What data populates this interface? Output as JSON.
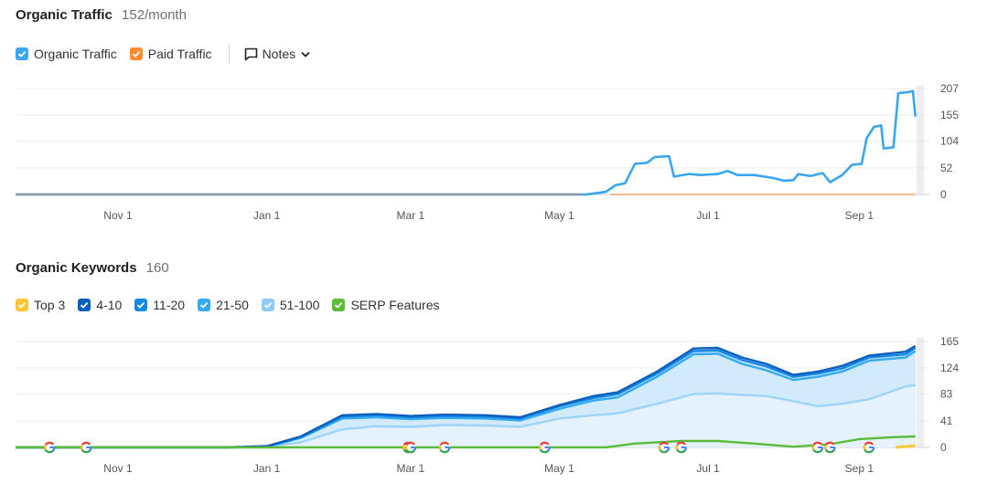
{
  "traffic": {
    "title": "Organic Traffic",
    "value": "152/month",
    "legend": [
      {
        "label": "Organic Traffic",
        "color": "#3aa6f0"
      },
      {
        "label": "Paid Traffic",
        "color": "#ff8c33"
      }
    ],
    "notes_label": "Notes"
  },
  "keywords": {
    "title": "Organic Keywords",
    "value": "160",
    "legend": [
      {
        "label": "Top 3",
        "color": "#ffc533"
      },
      {
        "label": "4-10",
        "color": "#0d5fbb"
      },
      {
        "label": "11-20",
        "color": "#1787e6"
      },
      {
        "label": "21-50",
        "color": "#34aaf2"
      },
      {
        "label": "51-100",
        "color": "#8fcbf6"
      },
      {
        "label": "SERP Features",
        "color": "#5cbc3a"
      }
    ]
  },
  "chart_data": [
    {
      "type": "line",
      "x_ticks": [
        "Nov 1",
        "Jan 1",
        "Mar 1",
        "May 1",
        "Jul 1",
        "Sep 1"
      ],
      "y_ticks": [
        "0",
        "52",
        "104",
        "155",
        "207"
      ],
      "ylim": [
        0,
        207
      ],
      "xlim": [
        "2022-09-20",
        "2023-09-26"
      ],
      "series": [
        {
          "name": "Organic Traffic",
          "color": "#3aa6f0",
          "points": [
            [
              "2022-09-20",
              0
            ],
            [
              "2023-05-12",
              0
            ],
            [
              "2023-05-20",
              5
            ],
            [
              "2023-05-24",
              18
            ],
            [
              "2023-05-28",
              22
            ],
            [
              "2023-06-01",
              60
            ],
            [
              "2023-06-06",
              62
            ],
            [
              "2023-06-09",
              73
            ],
            [
              "2023-06-15",
              75
            ],
            [
              "2023-06-17",
              35
            ],
            [
              "2023-06-23",
              40
            ],
            [
              "2023-06-28",
              38
            ],
            [
              "2023-07-05",
              40
            ],
            [
              "2023-07-09",
              46
            ],
            [
              "2023-07-13",
              38
            ],
            [
              "2023-07-20",
              38
            ],
            [
              "2023-07-28",
              32
            ],
            [
              "2023-08-01",
              27
            ],
            [
              "2023-08-05",
              28
            ],
            [
              "2023-08-07",
              40
            ],
            [
              "2023-08-12",
              36
            ],
            [
              "2023-08-17",
              42
            ],
            [
              "2023-08-20",
              24
            ],
            [
              "2023-08-25",
              38
            ],
            [
              "2023-08-29",
              58
            ],
            [
              "2023-09-02",
              60
            ],
            [
              "2023-09-04",
              110
            ],
            [
              "2023-09-07",
              132
            ],
            [
              "2023-09-10",
              135
            ],
            [
              "2023-09-11",
              90
            ],
            [
              "2023-09-15",
              92
            ],
            [
              "2023-09-17",
              198
            ],
            [
              "2023-09-21",
              200
            ],
            [
              "2023-09-23",
              202
            ],
            [
              "2023-09-24",
              152
            ]
          ]
        },
        {
          "name": "Paid Traffic",
          "color": "#f7b98a",
          "points": [
            [
              "2023-05-22",
              0
            ],
            [
              "2023-09-24",
              0
            ]
          ]
        }
      ]
    },
    {
      "type": "area",
      "x_ticks": [
        "Nov 1",
        "Jan 1",
        "Mar 1",
        "May 1",
        "Jul 1",
        "Sep 1"
      ],
      "y_ticks": [
        "0",
        "41",
        "83",
        "124",
        "165"
      ],
      "ylim": [
        0,
        165
      ],
      "xlim": [
        "2022-09-20",
        "2023-09-26"
      ],
      "series": [
        {
          "name": "51-100",
          "color": "#9fd3f7",
          "points": [
            [
              "2022-09-20",
              0
            ],
            [
              "2022-12-15",
              0
            ],
            [
              "2023-01-01",
              1
            ],
            [
              "2023-01-15",
              8
            ],
            [
              "2023-02-01",
              28
            ],
            [
              "2023-02-15",
              33
            ],
            [
              "2023-03-01",
              32
            ],
            [
              "2023-03-15",
              35
            ],
            [
              "2023-04-01",
              34
            ],
            [
              "2023-04-15",
              32
            ],
            [
              "2023-05-01",
              45
            ],
            [
              "2023-05-15",
              50
            ],
            [
              "2023-05-25",
              53
            ],
            [
              "2023-06-10",
              68
            ],
            [
              "2023-06-25",
              83
            ],
            [
              "2023-07-05",
              84
            ],
            [
              "2023-07-15",
              82
            ],
            [
              "2023-07-25",
              80
            ],
            [
              "2023-08-05",
              72
            ],
            [
              "2023-08-15",
              64
            ],
            [
              "2023-08-25",
              68
            ],
            [
              "2023-09-05",
              75
            ],
            [
              "2023-09-20",
              95
            ],
            [
              "2023-09-24",
              97
            ]
          ]
        },
        {
          "name": "21-50",
          "color": "#34aaf2",
          "points": [
            [
              "2022-09-20",
              0
            ],
            [
              "2022-12-15",
              0
            ],
            [
              "2023-01-01",
              1
            ],
            [
              "2023-01-15",
              15
            ],
            [
              "2023-02-01",
              45
            ],
            [
              "2023-02-15",
              47
            ],
            [
              "2023-03-01",
              44
            ],
            [
              "2023-03-15",
              46
            ],
            [
              "2023-04-01",
              45
            ],
            [
              "2023-04-15",
              42
            ],
            [
              "2023-05-01",
              60
            ],
            [
              "2023-05-15",
              73
            ],
            [
              "2023-05-25",
              78
            ],
            [
              "2023-06-10",
              110
            ],
            [
              "2023-06-25",
              145
            ],
            [
              "2023-07-05",
              146
            ],
            [
              "2023-07-15",
              130
            ],
            [
              "2023-07-25",
              120
            ],
            [
              "2023-08-05",
              105
            ],
            [
              "2023-08-15",
              110
            ],
            [
              "2023-08-25",
              118
            ],
            [
              "2023-09-05",
              135
            ],
            [
              "2023-09-20",
              140
            ],
            [
              "2023-09-24",
              150
            ]
          ]
        },
        {
          "name": "11-20",
          "color": "#1787e6",
          "points": [
            [
              "2022-09-20",
              0
            ],
            [
              "2022-12-15",
              0
            ],
            [
              "2023-01-01",
              1
            ],
            [
              "2023-01-15",
              16
            ],
            [
              "2023-02-01",
              48
            ],
            [
              "2023-02-15",
              50
            ],
            [
              "2023-03-01",
              47
            ],
            [
              "2023-03-15",
              49
            ],
            [
              "2023-04-01",
              48
            ],
            [
              "2023-04-15",
              45
            ],
            [
              "2023-05-01",
              64
            ],
            [
              "2023-05-15",
              77
            ],
            [
              "2023-05-25",
              83
            ],
            [
              "2023-06-10",
              115
            ],
            [
              "2023-06-25",
              150
            ],
            [
              "2023-07-05",
              151
            ],
            [
              "2023-07-15",
              136
            ],
            [
              "2023-07-25",
              126
            ],
            [
              "2023-08-05",
              110
            ],
            [
              "2023-08-15",
              115
            ],
            [
              "2023-08-25",
              123
            ],
            [
              "2023-09-05",
              140
            ],
            [
              "2023-09-20",
              145
            ],
            [
              "2023-09-24",
              155
            ]
          ]
        },
        {
          "name": "4-10",
          "color": "#0d5fbb",
          "points": [
            [
              "2022-09-20",
              0
            ],
            [
              "2022-12-15",
              0
            ],
            [
              "2023-01-01",
              2
            ],
            [
              "2023-01-15",
              17
            ],
            [
              "2023-02-01",
              50
            ],
            [
              "2023-02-15",
              52
            ],
            [
              "2023-03-01",
              49
            ],
            [
              "2023-03-15",
              51
            ],
            [
              "2023-04-01",
              50
            ],
            [
              "2023-04-15",
              47
            ],
            [
              "2023-05-01",
              66
            ],
            [
              "2023-05-15",
              80
            ],
            [
              "2023-05-25",
              86
            ],
            [
              "2023-06-10",
              118
            ],
            [
              "2023-06-25",
              154
            ],
            [
              "2023-07-05",
              155
            ],
            [
              "2023-07-15",
              140
            ],
            [
              "2023-07-25",
              130
            ],
            [
              "2023-08-05",
              113
            ],
            [
              "2023-08-15",
              118
            ],
            [
              "2023-08-25",
              127
            ],
            [
              "2023-09-05",
              143
            ],
            [
              "2023-09-20",
              149
            ],
            [
              "2023-09-24",
              158
            ]
          ]
        },
        {
          "name": "Top 3",
          "color": "#ffc533",
          "points": [
            [
              "2023-09-16",
              0
            ],
            [
              "2023-09-22",
              2
            ],
            [
              "2023-09-24",
              3
            ]
          ]
        },
        {
          "name": "SERP Features",
          "color": "#5cbc3a",
          "points": [
            [
              "2022-09-20",
              0
            ],
            [
              "2023-05-20",
              0
            ],
            [
              "2023-06-01",
              6
            ],
            [
              "2023-06-20",
              10
            ],
            [
              "2023-07-05",
              10
            ],
            [
              "2023-07-20",
              6
            ],
            [
              "2023-08-05",
              1
            ],
            [
              "2023-08-20",
              5
            ],
            [
              "2023-09-01",
              13
            ],
            [
              "2023-09-15",
              16
            ],
            [
              "2023-09-24",
              17
            ]
          ]
        }
      ],
      "google_update_markers": [
        "2022-10-04",
        "2022-10-19",
        "2023-02-28",
        "2023-03-01",
        "2023-03-15",
        "2023-04-25",
        "2023-06-13",
        "2023-06-20",
        "2023-08-15",
        "2023-08-20",
        "2023-09-05"
      ]
    }
  ]
}
